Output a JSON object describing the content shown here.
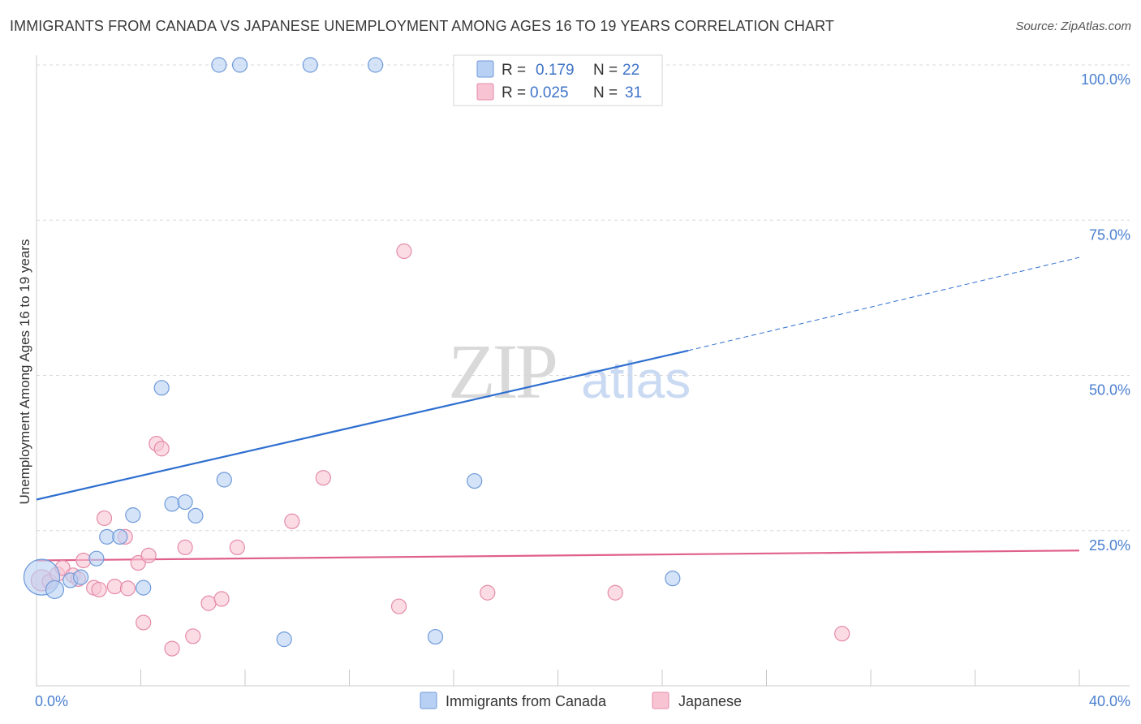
{
  "title": "IMMIGRANTS FROM CANADA VS JAPANESE UNEMPLOYMENT AMONG AGES 16 TO 19 YEARS CORRELATION CHART",
  "source": "Source: ZipAtlas.com",
  "watermark": {
    "zip": "ZIP",
    "atlas": "atlas"
  },
  "colors": {
    "blue_fill": "#b8d0f3",
    "blue_stroke": "#6f9ad9",
    "blue_line": "#2f6fd0",
    "pink_fill": "#f8c4d4",
    "pink_stroke": "#e58aa8",
    "pink_line": "#e0608c",
    "grid": "#d8d8d8",
    "axis_text": "#4a7fd0"
  },
  "legend": {
    "rows": [
      {
        "r_label": "R =",
        "r_value": "0.179",
        "n_label": "N =",
        "n_value": "22",
        "series": "blue"
      },
      {
        "r_label": "R =",
        "r_value": "0.025",
        "n_label": "N =",
        "n_value": "31",
        "series": "pink"
      }
    ]
  },
  "chart_data": {
    "type": "scatter",
    "title": "IMMIGRANTS FROM CANADA VS JAPANESE UNEMPLOYMENT AMONG AGES 16 TO 19 YEARS CORRELATION CHART",
    "xlabel": "",
    "ylabel": "Unemployment Among Ages 16 to 19 years",
    "xlim": [
      0,
      40
    ],
    "ylim": [
      0,
      100
    ],
    "x_tick_labels": [
      "0.0%",
      "40.0%"
    ],
    "y_ticks": [
      25,
      50,
      75,
      100
    ],
    "y_tick_labels": [
      "25.0%",
      "50.0%",
      "75.0%",
      "100.0%"
    ],
    "grid": true,
    "legend_position": "top-center",
    "series": [
      {
        "name": "Immigrants from Canada",
        "color": "blue",
        "points": [
          {
            "x": 0.2,
            "y": 17.5,
            "s": 22
          },
          {
            "x": 0.7,
            "y": 15.5,
            "s": 11
          },
          {
            "x": 1.3,
            "y": 17.0,
            "s": 9
          },
          {
            "x": 1.7,
            "y": 17.5,
            "s": 9
          },
          {
            "x": 2.3,
            "y": 20.5,
            "s": 9
          },
          {
            "x": 2.7,
            "y": 24.0,
            "s": 9
          },
          {
            "x": 3.2,
            "y": 24.0,
            "s": 9
          },
          {
            "x": 3.7,
            "y": 27.5,
            "s": 9
          },
          {
            "x": 4.1,
            "y": 15.8,
            "s": 9
          },
          {
            "x": 4.8,
            "y": 48.0,
            "s": 9
          },
          {
            "x": 5.2,
            "y": 29.3,
            "s": 9
          },
          {
            "x": 5.7,
            "y": 29.6,
            "s": 9
          },
          {
            "x": 6.1,
            "y": 27.4,
            "s": 9
          },
          {
            "x": 7.2,
            "y": 33.2,
            "s": 9
          },
          {
            "x": 7.0,
            "y": 100.0,
            "s": 9
          },
          {
            "x": 7.8,
            "y": 100.0,
            "s": 9
          },
          {
            "x": 9.5,
            "y": 7.5,
            "s": 9
          },
          {
            "x": 10.5,
            "y": 100.0,
            "s": 9
          },
          {
            "x": 13.0,
            "y": 100.0,
            "s": 9
          },
          {
            "x": 15.3,
            "y": 7.9,
            "s": 9
          },
          {
            "x": 16.8,
            "y": 33.0,
            "s": 9
          },
          {
            "x": 24.4,
            "y": 17.3,
            "s": 9
          }
        ],
        "trend": {
          "x0": 0,
          "y0": 30.0,
          "x1": 25,
          "y1": 54.0,
          "dash_to_x": 40,
          "dash_to_y": 69.0
        }
      },
      {
        "name": "Japanese",
        "color": "pink",
        "points": [
          {
            "x": 0.2,
            "y": 17.0,
            "s": 13
          },
          {
            "x": 0.5,
            "y": 16.8,
            "s": 9
          },
          {
            "x": 0.8,
            "y": 18.0,
            "s": 9
          },
          {
            "x": 1.0,
            "y": 19.0,
            "s": 9
          },
          {
            "x": 1.4,
            "y": 17.8,
            "s": 9
          },
          {
            "x": 1.6,
            "y": 17.2,
            "s": 9
          },
          {
            "x": 1.8,
            "y": 20.2,
            "s": 9
          },
          {
            "x": 2.2,
            "y": 15.8,
            "s": 9
          },
          {
            "x": 2.4,
            "y": 15.5,
            "s": 9
          },
          {
            "x": 2.6,
            "y": 27.0,
            "s": 9
          },
          {
            "x": 3.0,
            "y": 16.0,
            "s": 9
          },
          {
            "x": 3.4,
            "y": 24.0,
            "s": 9
          },
          {
            "x": 3.5,
            "y": 15.7,
            "s": 9
          },
          {
            "x": 3.9,
            "y": 19.8,
            "s": 9
          },
          {
            "x": 4.1,
            "y": 10.2,
            "s": 9
          },
          {
            "x": 4.3,
            "y": 21.0,
            "s": 9
          },
          {
            "x": 4.6,
            "y": 39.0,
            "s": 9
          },
          {
            "x": 4.8,
            "y": 38.2,
            "s": 9
          },
          {
            "x": 5.2,
            "y": 6.0,
            "s": 9
          },
          {
            "x": 5.7,
            "y": 22.3,
            "s": 9
          },
          {
            "x": 6.0,
            "y": 8.0,
            "s": 9
          },
          {
            "x": 6.6,
            "y": 13.3,
            "s": 9
          },
          {
            "x": 7.1,
            "y": 14.0,
            "s": 9
          },
          {
            "x": 7.7,
            "y": 22.3,
            "s": 9
          },
          {
            "x": 9.8,
            "y": 26.5,
            "s": 9
          },
          {
            "x": 11.0,
            "y": 33.5,
            "s": 9
          },
          {
            "x": 14.1,
            "y": 70.0,
            "s": 9
          },
          {
            "x": 13.9,
            "y": 12.8,
            "s": 9
          },
          {
            "x": 17.3,
            "y": 15.0,
            "s": 9
          },
          {
            "x": 22.2,
            "y": 15.0,
            "s": 9
          },
          {
            "x": 30.9,
            "y": 8.4,
            "s": 9
          }
        ],
        "trend": {
          "x0": 0,
          "y0": 20.2,
          "x1": 40,
          "y1": 21.8
        }
      }
    ]
  },
  "bottom_legend": [
    {
      "label": "Immigrants from Canada",
      "series": "blue"
    },
    {
      "label": "Japanese",
      "series": "pink"
    }
  ]
}
